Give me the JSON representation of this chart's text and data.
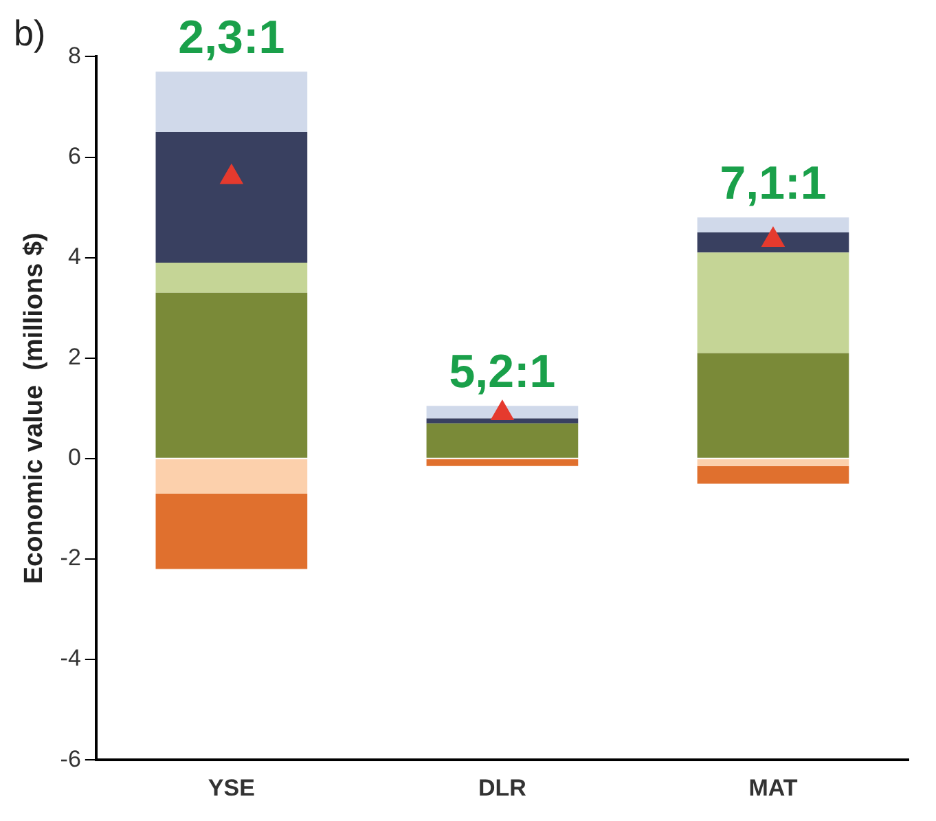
{
  "chart_data": {
    "type": "bar",
    "title": "b)",
    "ylabel": "Economic value  (millions $)",
    "categories": [
      "YSE",
      "DLR",
      "MAT"
    ],
    "stacked": true,
    "series": [
      {
        "color": "#7a8a38",
        "values": [
          3.3,
          0.7,
          2.1
        ]
      },
      {
        "color": "#c5d596",
        "values": [
          0.6,
          0,
          2.0
        ]
      },
      {
        "color": "#394060",
        "values": [
          2.6,
          0.1,
          0.4
        ]
      },
      {
        "color": "#d0d9ea",
        "values": [
          1.2,
          0.25,
          0.3
        ]
      },
      {
        "color": "#fcd0ac",
        "values": [
          -0.7,
          0,
          -0.15
        ]
      },
      {
        "color": "#e0702e",
        "values": [
          -1.5,
          -0.15,
          -0.35
        ]
      },
      {
        "type": "scatter",
        "color": "#e53a2e",
        "marker": "triangle",
        "x": [
          "YSE",
          "DLR",
          "MAT"
        ],
        "values": [
          5.6,
          0.9,
          4.35
        ]
      }
    ],
    "ylim": [
      -6,
      8
    ],
    "yticks": [
      -6,
      -4,
      -2,
      0,
      2,
      4,
      6,
      8
    ],
    "grid": false,
    "legend": false,
    "annotations": [
      {
        "text": "2,3:1",
        "x": "YSE",
        "y": 7.7
      },
      {
        "text": "5,2:1",
        "x": "DLR",
        "y": 1.05
      },
      {
        "text": "7,1:1",
        "x": "MAT",
        "y": 4.8
      }
    ]
  }
}
